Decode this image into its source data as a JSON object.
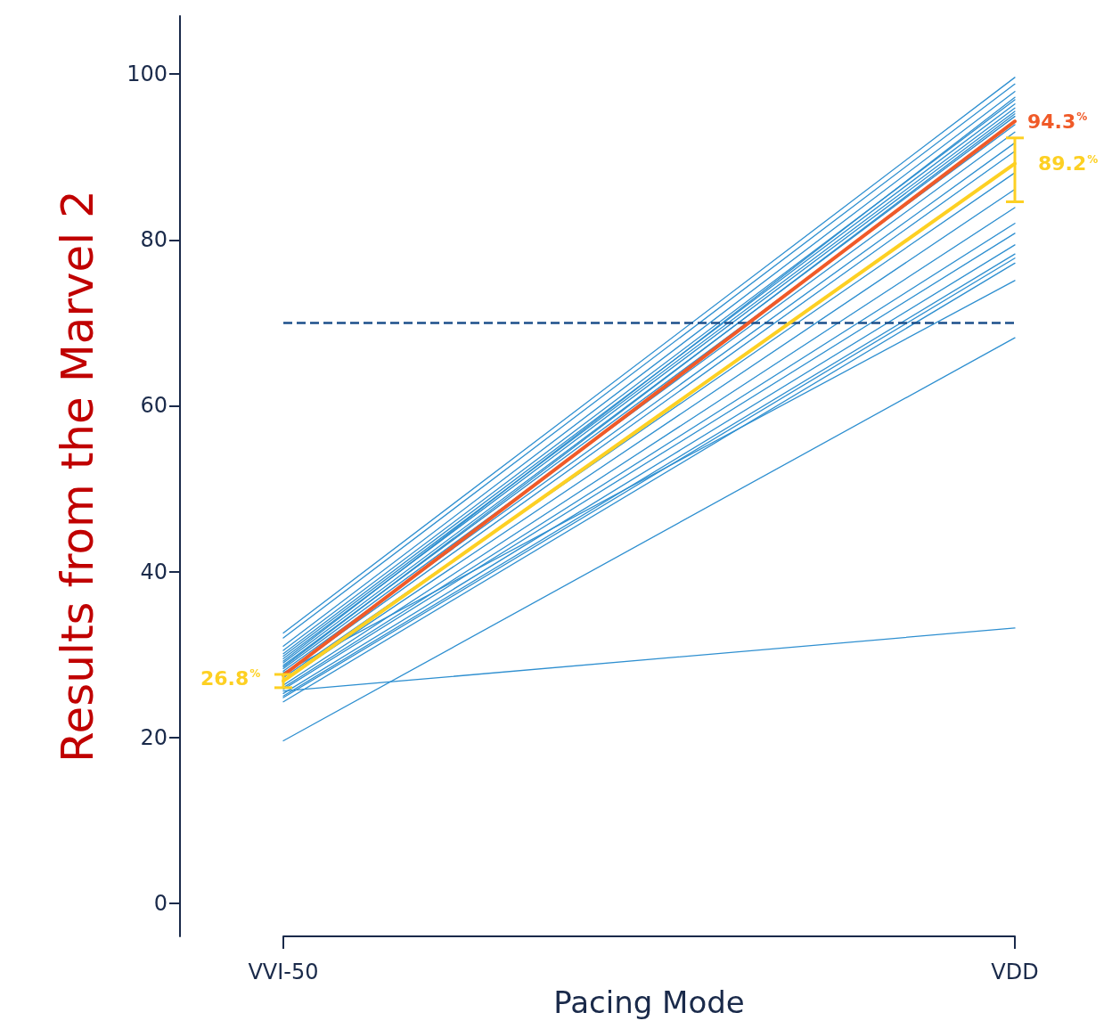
{
  "chart_data": {
    "type": "line",
    "ylabel": "Results from the Marvel 2",
    "xlabel": "Pacing Mode",
    "categories": [
      "VVI-50",
      "VDD"
    ],
    "ylim": [
      -4,
      107
    ],
    "yticks": [
      0,
      20,
      40,
      60,
      80,
      100
    ],
    "grid": false,
    "marker": "none",
    "line_style": "solid",
    "ref_lines": [
      {
        "axis": "y",
        "value": 70,
        "color": "#1b4f8a",
        "line_style": "dashed"
      }
    ],
    "series": [
      {
        "color": "#2e8fd0",
        "values": [
          32.6,
          99.6
        ]
      },
      {
        "color": "#2e8fd0",
        "values": [
          32.0,
          98.8
        ]
      },
      {
        "color": "#2e8fd0",
        "values": [
          31.0,
          97.9
        ]
      },
      {
        "color": "#2e8fd0",
        "values": [
          30.5,
          96.9
        ]
      },
      {
        "color": "#2e8fd0",
        "values": [
          30.1,
          96.4
        ]
      },
      {
        "color": "#2e8fd0",
        "values": [
          29.8,
          95.9
        ]
      },
      {
        "color": "#2e8fd0",
        "values": [
          29.5,
          95.5
        ]
      },
      {
        "color": "#2e8fd0",
        "values": [
          29.2,
          97.2
        ]
      },
      {
        "color": "#2e8fd0",
        "values": [
          29.0,
          94.9
        ]
      },
      {
        "color": "#2e8fd0",
        "values": [
          28.7,
          93.9
        ]
      },
      {
        "color": "#2e8fd0",
        "values": [
          28.5,
          95.2
        ]
      },
      {
        "color": "#2e8fd0",
        "values": [
          28.3,
          93.0
        ]
      },
      {
        "color": "#2e8fd0",
        "values": [
          28.0,
          91.7
        ]
      },
      {
        "color": "#2e8fd0",
        "values": [
          27.8,
          75.1
        ]
      },
      {
        "color": "#2e8fd0",
        "values": [
          27.6,
          90.7
        ]
      },
      {
        "color": "#2e8fd0",
        "values": [
          27.2,
          88.1
        ]
      },
      {
        "color": "#2e8fd0",
        "values": [
          26.8,
          86.1
        ]
      },
      {
        "color": "#2e8fd0",
        "values": [
          26.3,
          83.9
        ]
      },
      {
        "color": "#2e8fd0",
        "values": [
          26.0,
          82.0
        ]
      },
      {
        "color": "#2e8fd0",
        "values": [
          25.8,
          80.8
        ]
      },
      {
        "color": "#2e8fd0",
        "values": [
          25.6,
          33.2
        ]
      },
      {
        "color": "#2e8fd0",
        "values": [
          25.3,
          79.4
        ]
      },
      {
        "color": "#2e8fd0",
        "values": [
          25.0,
          78.3
        ]
      },
      {
        "color": "#2e8fd0",
        "values": [
          24.8,
          77.8
        ]
      },
      {
        "color": "#2e8fd0",
        "values": [
          24.3,
          77.2
        ]
      },
      {
        "color": "#2e8fd0",
        "values": [
          19.6,
          68.2
        ]
      },
      {
        "color": "#fdd023",
        "values": [
          26.8,
          89.2
        ],
        "errors": [
          [
            26.0,
            27.6
          ],
          [
            84.6,
            92.3
          ]
        ],
        "value_labels": [
          "26.8$^{%}$",
          "89.2$^{%}$"
        ]
      },
      {
        "color": "#f05a28",
        "values": [
          27.5,
          94.3
        ],
        "value_labels": [
          null,
          "94.3$^{%}$"
        ]
      }
    ]
  }
}
